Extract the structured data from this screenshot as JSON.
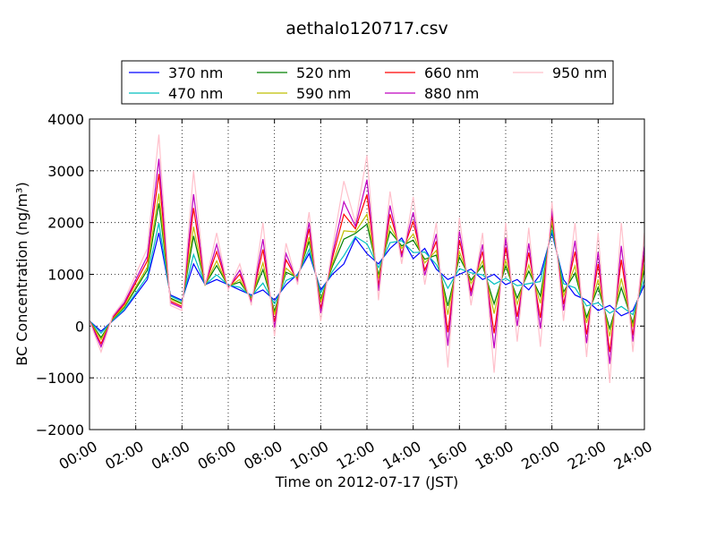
{
  "chart_data": {
    "type": "line",
    "title": "aethalo120717.csv",
    "xlabel": "Time on 2012-07-17 (JST)",
    "ylabel": "BC Concentration (ng/m³)",
    "x": [
      0,
      0.5,
      1,
      1.5,
      2,
      2.5,
      3,
      3.5,
      4,
      4.5,
      5,
      5.5,
      6,
      6.5,
      7,
      7.5,
      8,
      8.5,
      9,
      9.5,
      10,
      10.5,
      11,
      11.5,
      12,
      12.5,
      13,
      13.5,
      14,
      14.5,
      15,
      15.5,
      16,
      16.5,
      17,
      17.5,
      18,
      18.5,
      19,
      19.5,
      20,
      20.5,
      21,
      21.5,
      22,
      22.5,
      23,
      23.5,
      24
    ],
    "xlim": [
      0,
      24
    ],
    "xticks": [
      {
        "value": 0,
        "label": "00:00"
      },
      {
        "value": 2,
        "label": "02:00"
      },
      {
        "value": 4,
        "label": "04:00"
      },
      {
        "value": 6,
        "label": "06:00"
      },
      {
        "value": 8,
        "label": "08:00"
      },
      {
        "value": 10,
        "label": "10:00"
      },
      {
        "value": 12,
        "label": "12:00"
      },
      {
        "value": 14,
        "label": "14:00"
      },
      {
        "value": 16,
        "label": "16:00"
      },
      {
        "value": 18,
        "label": "18:00"
      },
      {
        "value": 20,
        "label": "20:00"
      },
      {
        "value": 22,
        "label": "22:00"
      },
      {
        "value": 24,
        "label": "24:00"
      }
    ],
    "ylim": [
      -2000,
      4000
    ],
    "yticks": [
      {
        "value": -2000,
        "label": "−2000"
      },
      {
        "value": -1000,
        "label": "−1000"
      },
      0,
      1000,
      2000,
      3000,
      4000
    ],
    "grid": true,
    "legend": "top",
    "series": [
      {
        "name": "370 nm",
        "color": "#0000ff",
        "values": [
          100,
          -100,
          100,
          300,
          600,
          900,
          1800,
          600,
          500,
          1200,
          800,
          900,
          800,
          700,
          600,
          700,
          500,
          800,
          1000,
          1400,
          700,
          1000,
          1200,
          1700,
          1400,
          1200,
          1500,
          1700,
          1300,
          1500,
          1100,
          900,
          1000,
          1100,
          900,
          1000,
          800,
          900,
          700,
          1000,
          1800,
          900,
          600,
          500,
          300,
          400,
          200,
          300,
          800
        ]
      },
      {
        "name": "470 nm",
        "color": "#00bfbf",
        "values": [
          100,
          -140,
          110,
          320,
          640,
          960,
          1990,
          580,
          480,
          1380,
          800,
          990,
          790,
          750,
          580,
          830,
          430,
          880,
          980,
          1480,
          640,
          1050,
          1360,
          1730,
          1590,
          1130,
          1610,
          1650,
          1420,
          1430,
          1190,
          730,
          1110,
          1030,
          990,
          810,
          920,
          780,
          820,
          860,
          1860,
          820,
          740,
          390,
          450,
          250,
          380,
          220,
          900
        ]
      },
      {
        "name": "520 nm",
        "color": "#008000",
        "values": [
          100,
          -220,
          130,
          360,
          720,
          1080,
          2370,
          540,
          440,
          1740,
          800,
          1170,
          770,
          850,
          540,
          1090,
          290,
          1040,
          940,
          1640,
          520,
          1150,
          1680,
          1790,
          1970,
          990,
          1830,
          1550,
          1660,
          1290,
          1370,
          390,
          1330,
          890,
          1170,
          430,
          1160,
          540,
          1060,
          580,
          1980,
          660,
          1020,
          170,
          750,
          -50,
          740,
          60,
          1100
        ]
      },
      {
        "name": "590 nm",
        "color": "#bfbf00",
        "values": [
          100,
          -260,
          140,
          380,
          760,
          1140,
          2560,
          520,
          420,
          1920,
          800,
          1260,
          760,
          900,
          520,
          1220,
          220,
          1120,
          920,
          1720,
          460,
          1200,
          1840,
          1820,
          2160,
          920,
          1940,
          1500,
          1780,
          1220,
          1460,
          220,
          1440,
          820,
          1260,
          240,
          1280,
          420,
          1180,
          440,
          2040,
          580,
          1160,
          60,
          900,
          -200,
          920,
          -20,
          1200
        ]
      },
      {
        "name": "660 nm",
        "color": "#ff0000",
        "values": [
          100,
          -340,
          160,
          420,
          840,
          1260,
          2940,
          480,
          380,
          2280,
          800,
          1440,
          740,
          1000,
          480,
          1480,
          80,
          1280,
          880,
          1880,
          340,
          1300,
          2160,
          1880,
          2540,
          780,
          2160,
          1400,
          2020,
          1080,
          1640,
          -120,
          1660,
          680,
          1440,
          -140,
          1520,
          180,
          1420,
          160,
          2160,
          420,
          1440,
          -160,
          1200,
          -500,
          1280,
          -180,
          1400
        ]
      },
      {
        "name": "880 nm",
        "color": "#bf00bf",
        "values": [
          100,
          -400,
          180,
          450,
          900,
          1350,
          3230,
          450,
          350,
          2550,
          800,
          1580,
          730,
          1080,
          450,
          1680,
          -30,
          1400,
          850,
          2000,
          250,
          1380,
          2400,
          1930,
          2830,
          680,
          2330,
          1330,
          2200,
          980,
          1780,
          -380,
          1830,
          580,
          1580,
          -430,
          1700,
          0,
          1600,
          -50,
          2250,
          300,
          1650,
          -330,
          1430,
          -730,
          1550,
          -300,
          1550
        ]
      },
      {
        "name": "950 nm",
        "color": "#ffc0cb",
        "values": [
          100,
          -500,
          200,
          500,
          1000,
          1500,
          3700,
          400,
          300,
          3000,
          800,
          1800,
          700,
          1200,
          400,
          2000,
          -200,
          1600,
          800,
          2200,
          100,
          1500,
          2800,
          2000,
          3300,
          500,
          2600,
          1200,
          2500,
          800,
          2000,
          -800,
          2100,
          400,
          1800,
          -900,
          2000,
          -300,
          1900,
          -400,
          2400,
          100,
          2000,
          -600,
          1800,
          -1100,
          2000,
          -500,
          1800
        ]
      }
    ]
  }
}
